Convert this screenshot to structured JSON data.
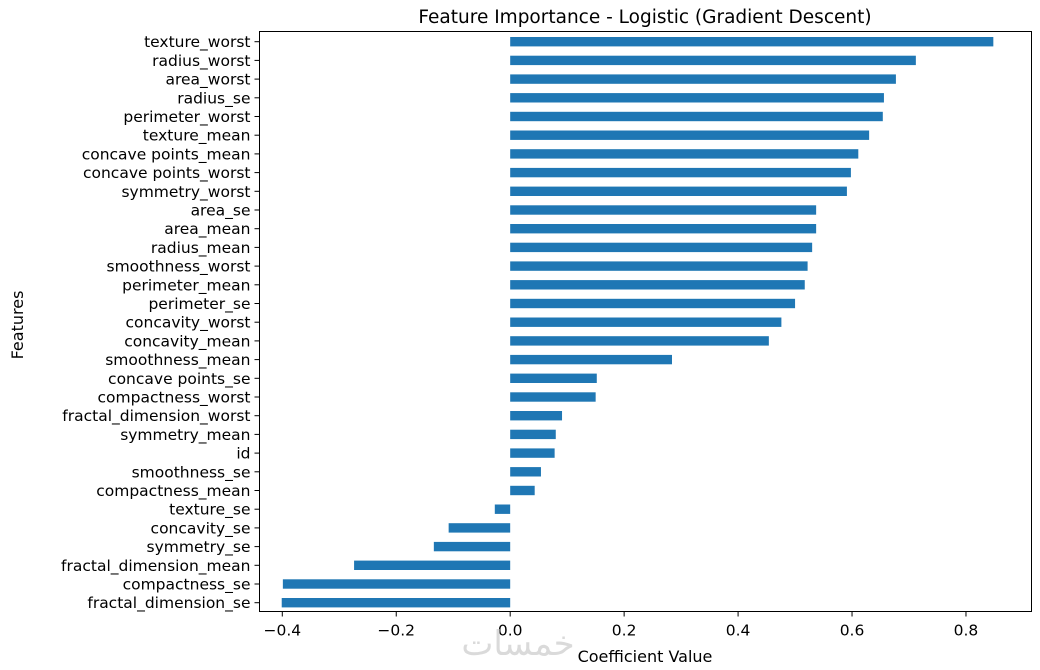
{
  "chart_data": {
    "type": "bar",
    "orientation": "horizontal",
    "title": "Feature Importance - Logistic (Gradient Descent)",
    "xlabel": "Coefficient Value",
    "ylabel": "Features",
    "xlim": [
      -0.44,
      0.915
    ],
    "xticks": [
      -0.4,
      -0.2,
      0.0,
      0.2,
      0.4,
      0.6,
      0.8
    ],
    "xtick_labels": [
      "−0.4",
      "−0.2",
      "0.0",
      "0.2",
      "0.4",
      "0.6",
      "0.8"
    ],
    "grid": false,
    "bar_color": "#1f77b4",
    "categories": [
      "texture_worst",
      "radius_worst",
      "area_worst",
      "radius_se",
      "perimeter_worst",
      "texture_mean",
      "concave points_mean",
      "concave points_worst",
      "symmetry_worst",
      "area_se",
      "area_mean",
      "radius_mean",
      "smoothness_worst",
      "perimeter_mean",
      "perimeter_se",
      "concavity_worst",
      "concavity_mean",
      "smoothness_mean",
      "concave points_se",
      "compactness_worst",
      "fractal_dimension_worst",
      "symmetry_mean",
      "id",
      "smoothness_se",
      "compactness_mean",
      "texture_se",
      "concavity_se",
      "symmetry_se",
      "fractal_dimension_mean",
      "compactness_se",
      "fractal_dimension_se"
    ],
    "values": [
      0.848,
      0.712,
      0.677,
      0.656,
      0.654,
      0.63,
      0.611,
      0.598,
      0.591,
      0.537,
      0.537,
      0.53,
      0.522,
      0.517,
      0.5,
      0.476,
      0.454,
      0.284,
      0.152,
      0.15,
      0.091,
      0.08,
      0.078,
      0.054,
      0.043,
      -0.027,
      -0.108,
      -0.134,
      -0.274,
      -0.399,
      -0.401
    ]
  },
  "watermark": {
    "text": "خمسات"
  }
}
